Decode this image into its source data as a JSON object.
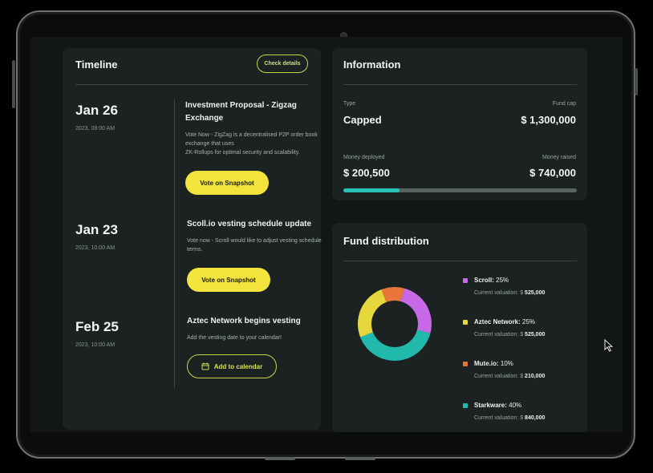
{
  "timeline": {
    "title": "Timeline",
    "check_details_label": "Check details",
    "events": [
      {
        "date": "Jan 26",
        "time": "2023, 08:00 AM",
        "title": "Investment Proposal - Zigzag Exchange",
        "description_lines": [
          "Vote Now - ZigZag is a decentralised P2P order book",
          "exchange that uses",
          " ZK-Rollups for optimal security and scalability."
        ],
        "button_label": "Vote on Snapshot"
      },
      {
        "date": "Jan 23",
        "time": "2023, 10:00 AM",
        "title": "Scoll.io vesting schedule update",
        "description_lines": [
          "Vote now - Scroll would like to adjust vesting schedule",
          "terms."
        ],
        "button_label": "Vote on Snapshot"
      },
      {
        "date": "Feb 25",
        "time": "2023, 10:00 AM",
        "title": "Aztec Network begins vesting",
        "description_lines": [
          "Add the vesting date to your calendar!"
        ],
        "button_label": "Add to calendar"
      }
    ]
  },
  "information": {
    "title": "Information",
    "type_label": "Type",
    "type_value": "Capped",
    "fund_cap_label": "Fund cap",
    "fund_cap_value": "$ 1,300,000",
    "money_deployed_label": "Money deployed",
    "money_deployed_value": "$ 200,500",
    "money_raised_label": "Money raised",
    "money_raised_value": "$ 740,000",
    "progress_fraction": 0.24,
    "progress_color": "#27c2b4"
  },
  "fund_distribution": {
    "title": "Fund distribution",
    "valuation_prefix": "Current valuation: $ ",
    "items": [
      {
        "name": "Scroll:",
        "percent": "25%",
        "valuation": "525,000",
        "color": "#c869e8",
        "share": 25
      },
      {
        "name": "Aztec Network:",
        "percent": "25%",
        "valuation": "525,000",
        "color": "#e6d83c",
        "share": 25
      },
      {
        "name": "Mute.io:",
        "percent": "10%",
        "valuation": "210,000",
        "color": "#e8763a",
        "share": 10
      },
      {
        "name": "Starkware:",
        "percent": "40%",
        "valuation": "840,000",
        "color": "#22b9ad",
        "share": 40
      }
    ]
  },
  "icons": {
    "calendar": "calendar-icon",
    "cursor": "mouse-pointer-icon"
  },
  "colors": {
    "accent_yellow": "#f2e43d",
    "background": "#121716",
    "card": "#1b2221"
  }
}
